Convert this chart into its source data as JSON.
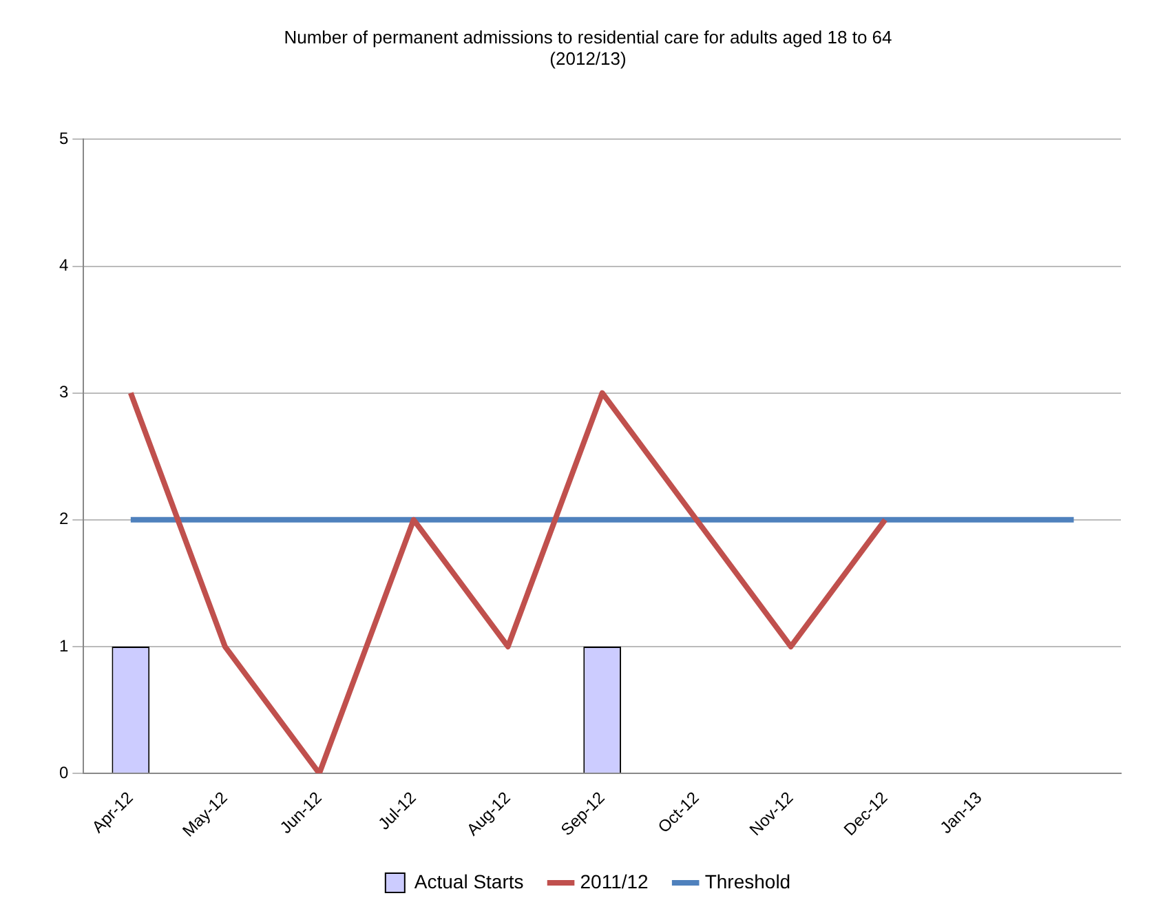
{
  "chart_data": {
    "type": "bar",
    "title": "Number of permanent admissions to residential care for adults aged 18 to 64\n(2012/13)",
    "categories": [
      "Apr-12",
      "May-12",
      "Jun-12",
      "Jul-12",
      "Aug-12",
      "Sep-12",
      "Oct-12",
      "Nov-12",
      "Dec-12",
      "Jan-13",
      null
    ],
    "series": [
      {
        "name": "Actual Starts",
        "color": "#ccccff",
        "values": [
          1,
          null,
          null,
          null,
          null,
          1,
          null,
          null,
          null,
          null,
          null
        ]
      },
      {
        "name": "2011/12",
        "type": "line",
        "color": "#c0504d",
        "values": [
          3,
          1,
          0,
          2,
          1,
          3,
          2,
          1,
          2,
          null,
          null
        ]
      },
      {
        "name": "Threshold",
        "type": "line",
        "color": "#4f81bd",
        "values": [
          2,
          2,
          2,
          2,
          2,
          2,
          2,
          2,
          2,
          2,
          2
        ]
      }
    ],
    "ylim": [
      0,
      5
    ],
    "yticks": [
      0,
      1,
      2,
      3,
      4,
      5
    ],
    "grid": "y",
    "legend": "bottom",
    "marker": "none"
  }
}
